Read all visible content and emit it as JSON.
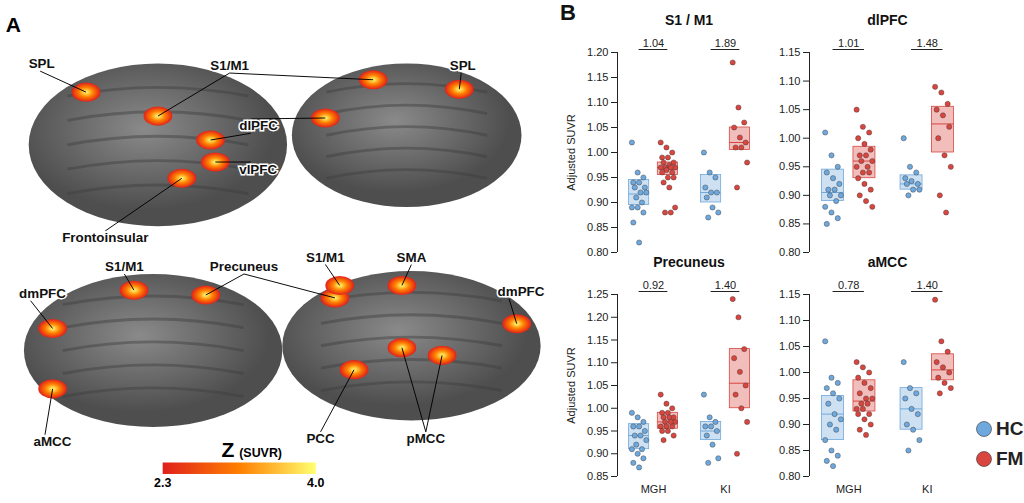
{
  "panel_labels": [
    "A",
    "B"
  ],
  "panel_a": {
    "regions": [
      "SPL",
      "S1/M1",
      "SPL",
      "dlPFC",
      "vlPFC",
      "Frontoinsular",
      "dmPFC",
      "S1/M1",
      "Precuneus",
      "S1/M1",
      "SMA",
      "dmPFC",
      "aMCC",
      "PCC",
      "pMCC"
    ],
    "colorbar": {
      "title": "Z",
      "unit": "(SUVR)",
      "range": [
        2.3,
        4.0
      ],
      "ticks": [
        2.3,
        {
          "value": 4,
          "label": "4.0"
        }
      ],
      "colors": [
        "#e0201b",
        "#ff7f00",
        "#ffff70"
      ]
    }
  },
  "chart_data": [
    {
      "type": "strip",
      "title": "S1 / M1",
      "y_label": "Adjusted SUVR",
      "categories": [
        "MGH",
        "KI"
      ],
      "tick_labels": "y",
      "ylim": [
        0.8,
        1.2
      ],
      "yticks": [
        {
          "value": 0.8,
          "label": "0.80"
        },
        0.85,
        {
          "value": 0.9,
          "label": "0.90"
        },
        0.95,
        {
          "value": 1.0,
          "label": "1.00"
        },
        1.05,
        {
          "value": 1.1,
          "label": "1.10"
        },
        1.15,
        {
          "value": 1.2,
          "label": "1.20"
        }
      ],
      "annotations": [
        "1.04",
        "1.89"
      ],
      "series": [
        {
          "name": "HC",
          "color": "#6fa8dc",
          "values": [
            [
              1.02,
              0.96,
              0.95,
              0.94,
              0.94,
              0.93,
              0.93,
              0.92,
              0.92,
              0.91,
              0.9,
              0.89,
              0.89,
              0.88,
              0.86,
              0.82
            ],
            [
              1.0,
              0.96,
              0.95,
              0.93,
              0.92,
              0.92,
              0.91,
              0.89,
              0.88,
              0.87
            ]
          ],
          "box": [
            {
              "q1": 0.895,
              "median": 0.917,
              "q3": 0.945
            },
            {
              "q1": 0.9,
              "median": 0.92,
              "q3": 0.955
            }
          ]
        },
        {
          "name": "FM",
          "color": "#d9463f",
          "values": [
            [
              1.02,
              1.01,
              1.0,
              0.99,
              0.99,
              0.98,
              0.98,
              0.975,
              0.97,
              0.97,
              0.97,
              0.97,
              0.965,
              0.96,
              0.96,
              0.95,
              0.95,
              0.94,
              0.93,
              0.89,
              0.88,
              0.88
            ],
            [
              1.18,
              1.09,
              1.06,
              1.05,
              1.03,
              1.02,
              1.01,
              1.01,
              0.98,
              0.93
            ]
          ],
          "box": [
            {
              "q1": 0.955,
              "median": 0.97,
              "q3": 0.98
            },
            {
              "q1": 1.005,
              "median": 1.02,
              "q3": 1.05
            }
          ]
        }
      ]
    },
    {
      "type": "strip",
      "title": "dlPFC",
      "categories": [
        "MGH",
        "KI"
      ],
      "tick_labels": "y",
      "ylim": [
        0.8,
        1.15
      ],
      "yticks": [
        {
          "value": 0.8,
          "label": "0.80"
        },
        0.85,
        {
          "value": 0.9,
          "label": "0.90"
        },
        0.95,
        {
          "value": 1.0,
          "label": "1.00"
        },
        1.05,
        {
          "value": 1.1,
          "label": "1.10"
        },
        1.15
      ],
      "annotations": [
        "1.01",
        "1.48"
      ],
      "series": [
        {
          "name": "HC",
          "color": "#6fa8dc",
          "values": [
            [
              1.01,
              0.97,
              0.95,
              0.94,
              0.93,
              0.92,
              0.91,
              0.91,
              0.9,
              0.9,
              0.89,
              0.88,
              0.87,
              0.86,
              0.85
            ],
            [
              1.0,
              0.95,
              0.94,
              0.93,
              0.925,
              0.92,
              0.92,
              0.91,
              0.91,
              0.9
            ]
          ],
          "box": [
            {
              "q1": 0.89,
              "median": 0.905,
              "q3": 0.945
            },
            {
              "q1": 0.91,
              "median": 0.92,
              "q3": 0.935
            }
          ]
        },
        {
          "name": "FM",
          "color": "#d9463f",
          "values": [
            [
              1.05,
              1.02,
              1.01,
              1.0,
              0.99,
              0.98,
              0.97,
              0.97,
              0.96,
              0.96,
              0.95,
              0.95,
              0.94,
              0.94,
              0.93,
              0.92,
              0.91,
              0.9,
              0.89,
              0.88
            ],
            [
              1.09,
              1.08,
              1.06,
              1.05,
              1.04,
              1.02,
              1.0,
              0.97,
              0.95,
              0.9,
              0.87
            ]
          ],
          "box": [
            {
              "q1": 0.93,
              "median": 0.96,
              "q3": 0.985
            },
            {
              "q1": 0.975,
              "median": 1.025,
              "q3": 1.055
            }
          ]
        }
      ]
    },
    {
      "type": "strip",
      "title": "Precuneus",
      "y_label": "Adjusted SUVR",
      "categories": [
        "MGH",
        "KI"
      ],
      "ylim": [
        0.85,
        1.25
      ],
      "yticks": [
        0.85,
        {
          "value": 0.9,
          "label": "0.90"
        },
        0.95,
        {
          "value": 1.0,
          "label": "1.00"
        },
        1.05,
        {
          "value": 1.1,
          "label": "1.10"
        },
        1.15,
        {
          "value": 1.2,
          "label": "1.20"
        },
        1.25
      ],
      "annotations": [
        "0.92",
        "1.40"
      ],
      "series": [
        {
          "name": "HC",
          "color": "#6fa8dc",
          "values": [
            [
              0.99,
              0.98,
              0.97,
              0.96,
              0.96,
              0.95,
              0.94,
              0.94,
              0.93,
              0.92,
              0.91,
              0.91,
              0.9,
              0.89,
              0.88,
              0.87
            ],
            [
              1.03,
              0.98,
              0.97,
              0.96,
              0.96,
              0.95,
              0.94,
              0.92,
              0.89,
              0.88
            ]
          ],
          "box": [
            {
              "q1": 0.91,
              "median": 0.94,
              "q3": 0.965
            },
            {
              "q1": 0.93,
              "median": 0.95,
              "q3": 0.97
            }
          ]
        },
        {
          "name": "FM",
          "color": "#d9463f",
          "values": [
            [
              1.03,
              1.01,
              1.0,
              0.99,
              0.99,
              0.98,
              0.98,
              0.98,
              0.97,
              0.97,
              0.97,
              0.96,
              0.96,
              0.96,
              0.95,
              0.95,
              0.94,
              0.93
            ],
            [
              1.24,
              1.2,
              1.13,
              1.11,
              1.08,
              1.05,
              1.03,
              1.0,
              0.97,
              0.9
            ]
          ],
          "box": [
            {
              "q1": 0.955,
              "median": 0.97,
              "q3": 0.99
            },
            {
              "q1": 1.0,
              "median": 1.055,
              "q3": 1.13
            }
          ]
        }
      ]
    },
    {
      "type": "strip",
      "title": "aMCC",
      "categories": [
        "MGH",
        "KI"
      ],
      "legend": "bottom-right",
      "ylim": [
        0.8,
        1.15
      ],
      "yticks": [
        {
          "value": 0.8,
          "label": "0.80"
        },
        0.85,
        {
          "value": 0.9,
          "label": "0.90"
        },
        0.95,
        {
          "value": 1.0,
          "label": "1.00"
        },
        1.05,
        {
          "value": 1.1,
          "label": "1.10"
        },
        1.15
      ],
      "annotations": [
        "0.78",
        "1.40"
      ],
      "series": [
        {
          "name": "HC",
          "color": "#6fa8dc",
          "values": [
            [
              1.06,
              0.99,
              0.98,
              0.97,
              0.96,
              0.95,
              0.94,
              0.92,
              0.91,
              0.9,
              0.89,
              0.87,
              0.85,
              0.84,
              0.83,
              0.82
            ],
            [
              1.02,
              0.97,
              0.96,
              0.95,
              0.93,
              0.92,
              0.9,
              0.89,
              0.87,
              0.85
            ]
          ],
          "box": [
            {
              "q1": 0.87,
              "median": 0.92,
              "q3": 0.955
            },
            {
              "q1": 0.89,
              "median": 0.93,
              "q3": 0.97
            }
          ]
        },
        {
          "name": "FM",
          "color": "#d9463f",
          "values": [
            [
              1.02,
              1.01,
              1.0,
              0.99,
              0.98,
              0.97,
              0.96,
              0.95,
              0.95,
              0.94,
              0.94,
              0.93,
              0.93,
              0.92,
              0.92,
              0.91,
              0.9,
              0.89,
              0.88
            ],
            [
              1.14,
              1.06,
              1.04,
              1.02,
              1.01,
              1.0,
              0.99,
              0.98,
              0.97,
              0.96
            ]
          ],
          "box": [
            {
              "q1": 0.925,
              "median": 0.945,
              "q3": 0.985
            },
            {
              "q1": 0.985,
              "median": 1.005,
              "q3": 1.035
            }
          ]
        }
      ]
    }
  ]
}
